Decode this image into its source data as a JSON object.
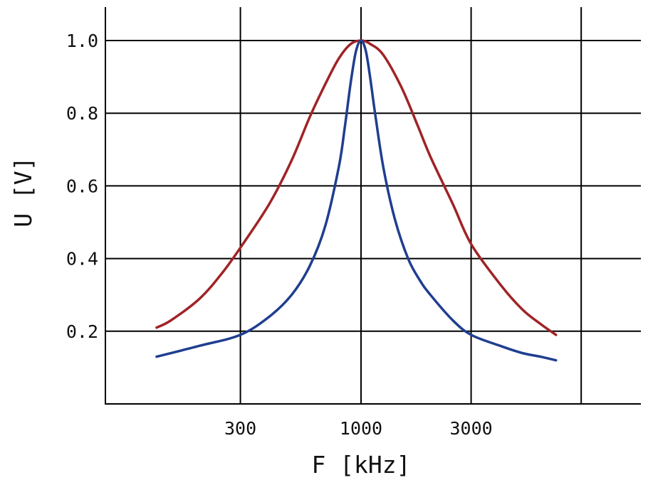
{
  "chart_data": {
    "type": "line",
    "title": "",
    "xlabel": "F [kHz]",
    "ylabel": "U [V]",
    "xscale": "log",
    "xlim": [
      100,
      10000
    ],
    "ylim": [
      0,
      1.1
    ],
    "x_ticks": [
      300,
      1000,
      3000
    ],
    "x_tick_labels": [
      "300",
      "1000",
      "3000"
    ],
    "x_gridlines": [
      300,
      1000,
      3000,
      9000
    ],
    "y_ticks": [
      0.2,
      0.4,
      0.6,
      0.8,
      1.0
    ],
    "y_tick_labels": [
      "0.2",
      "0.4",
      "0.6",
      "0.8",
      "1.0"
    ],
    "grid": true,
    "legend": "none",
    "series": [
      {
        "color": "#A02326",
        "x": [
          130,
          150,
          200,
          250,
          300,
          400,
          500,
          600,
          700,
          800,
          900,
          1000,
          1100,
          1250,
          1500,
          1750,
          2000,
          2500,
          3000,
          4000,
          5000,
          6000,
          7000
        ],
        "y": [
          0.21,
          0.23,
          0.29,
          0.36,
          0.43,
          0.55,
          0.67,
          0.79,
          0.88,
          0.95,
          0.99,
          1.0,
          0.99,
          0.96,
          0.87,
          0.77,
          0.68,
          0.55,
          0.44,
          0.33,
          0.26,
          0.22,
          0.19
        ]
      },
      {
        "color": "#1F3E8F",
        "x": [
          130,
          200,
          300,
          400,
          500,
          600,
          700,
          800,
          850,
          900,
          950,
          1000,
          1050,
          1100,
          1150,
          1250,
          1400,
          1600,
          1800,
          2000,
          2500,
          3000,
          4000,
          5000,
          6000,
          7000
        ],
        "y": [
          0.13,
          0.16,
          0.19,
          0.24,
          0.3,
          0.38,
          0.49,
          0.65,
          0.76,
          0.88,
          0.97,
          1.0,
          0.97,
          0.89,
          0.8,
          0.65,
          0.51,
          0.4,
          0.34,
          0.3,
          0.23,
          0.19,
          0.16,
          0.14,
          0.13,
          0.12
        ]
      }
    ]
  }
}
